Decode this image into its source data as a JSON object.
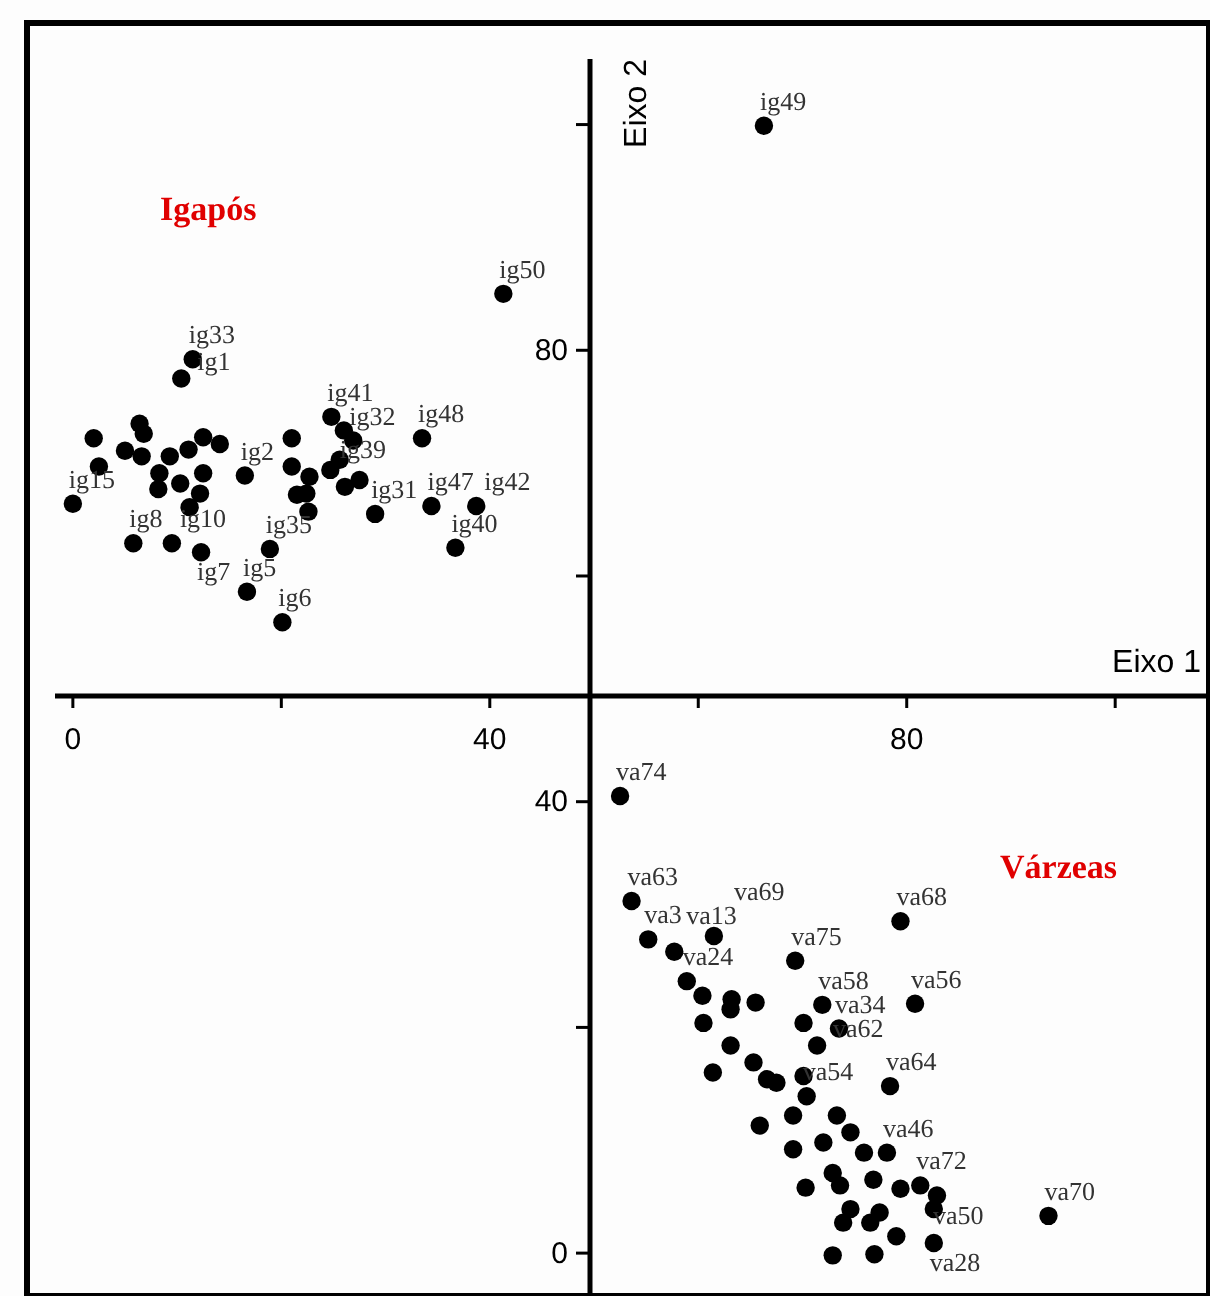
{
  "chart_data": {
    "type": "scatter",
    "xlabel": "Eixo 1",
    "ylabel": "Eixo 2",
    "xlim": [
      -4.4,
      109
    ],
    "ylim": [
      -3.8,
      109
    ],
    "xticks": [
      0,
      40,
      80
    ],
    "yticks": [
      0,
      40,
      80
    ],
    "marker": "circle",
    "grid": false,
    "annotations": [
      "Igapós",
      "Várzeas"
    ],
    "series": [
      {
        "color": "#000000",
        "x": [
          41.3,
          66.3,
          11.5,
          10.4,
          2.0,
          6.4,
          6.8,
          5.0,
          6.6,
          2.5,
          0.0,
          8.3,
          8.2,
          10.3,
          9.3,
          11.1,
          12.5,
          14.1,
          12.5,
          12.2,
          11.2,
          5.8,
          9.5,
          12.3,
          16.5,
          21.0,
          21.0,
          22.7,
          24.8,
          26.0,
          26.9,
          25.6,
          24.7,
          26.1,
          27.5,
          21.5,
          22.4,
          22.6,
          29.0,
          33.5,
          34.4,
          38.7,
          36.7,
          18.9,
          16.7,
          20.1
        ],
        "values": [
          85.0,
          99.9,
          79.2,
          77.5,
          72.2,
          73.5,
          72.6,
          71.1,
          70.6,
          69.7,
          66.4,
          69.1,
          67.7,
          68.2,
          70.6,
          71.2,
          72.3,
          71.7,
          69.1,
          67.3,
          66.1,
          62.9,
          62.9,
          62.1,
          68.9,
          72.2,
          69.7,
          68.8,
          74.1,
          72.9,
          72.0,
          70.3,
          69.4,
          67.9,
          68.5,
          67.2,
          67.3,
          65.7,
          65.5,
          72.2,
          66.2,
          66.2,
          62.5,
          62.4,
          58.6,
          55.9
        ],
        "value_labels": [
          "ig50",
          "ig49",
          "ig33",
          "ig1",
          null,
          null,
          null,
          null,
          null,
          null,
          "ig15",
          null,
          null,
          null,
          null,
          null,
          null,
          null,
          null,
          null,
          null,
          "ig8",
          "ig10",
          "ig7",
          "ig2",
          null,
          null,
          null,
          "ig41",
          "ig39",
          "ig32",
          null,
          null,
          null,
          null,
          null,
          null,
          null,
          "ig31",
          "ig48",
          "ig47",
          "ig42",
          "ig40",
          "ig35",
          "ig5",
          "ig6"
        ]
      },
      {
        "color": "#000000",
        "x": [
          52.5,
          53.6,
          55.2,
          57.7,
          61.5,
          58.9,
          60.4,
          69.3,
          71.9,
          63.2,
          65.5,
          80.8,
          73.5,
          70.1,
          63.1,
          60.5,
          63.1,
          61.4,
          65.3,
          66.6,
          67.5,
          71.4,
          70.1,
          70.4,
          78.4,
          65.9,
          69.1,
          73.3,
          74.6,
          69.1,
          72.0,
          75.9,
          78.1,
          72.9,
          70.3,
          73.6,
          76.8,
          79.4,
          81.3,
          82.9,
          82.6,
          74.6,
          77.4,
          76.5,
          79.0,
          82.6,
          72.9,
          76.9,
          93.6,
          73.9,
          79.4
        ],
        "values": [
          40.5,
          31.2,
          27.8,
          26.7,
          28.1,
          24.1,
          22.8,
          25.9,
          22.0,
          22.5,
          22.2,
          22.1,
          19.9,
          20.4,
          21.6,
          20.4,
          18.4,
          16.0,
          16.9,
          15.4,
          15.1,
          18.4,
          15.7,
          13.9,
          14.8,
          11.3,
          12.2,
          12.2,
          10.7,
          9.2,
          9.8,
          8.9,
          8.9,
          7.1,
          5.8,
          6.0,
          6.5,
          5.7,
          6.0,
          5.1,
          3.9,
          3.9,
          3.6,
          2.7,
          1.5,
          0.9,
          -0.2,
          -0.1,
          3.3,
          2.7,
          29.4
        ],
        "value_labels": [
          "va74",
          "va63",
          "va3",
          "va13",
          "va69",
          "va24",
          null,
          "va75",
          "va58",
          null,
          null,
          "va56",
          "va34",
          null,
          null,
          null,
          null,
          null,
          null,
          null,
          null,
          "va62",
          null,
          "va54",
          "va64",
          null,
          null,
          null,
          null,
          null,
          null,
          null,
          "va46",
          null,
          null,
          null,
          null,
          null,
          "va72",
          "va50",
          null,
          null,
          null,
          null,
          null,
          "va28",
          null,
          null,
          "va70",
          null,
          "va68"
        ]
      }
    ]
  }
}
